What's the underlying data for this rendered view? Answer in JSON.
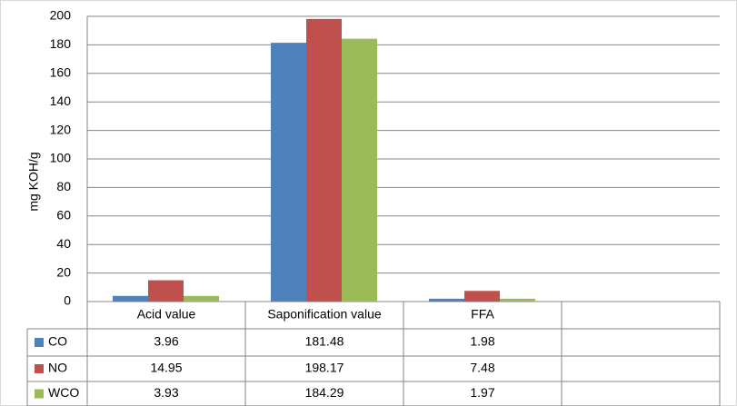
{
  "chart_data": {
    "type": "bar",
    "y_label": "mg KOH/g",
    "categories": [
      "Acid value",
      "Saponification value",
      "FFA",
      null
    ],
    "series": [
      {
        "name": "CO",
        "color": "#4f81bd",
        "values": [
          3.96,
          181.48,
          1.98,
          null
        ]
      },
      {
        "name": "NO",
        "color": "#c0504d",
        "values": [
          14.95,
          198.17,
          7.48,
          null
        ]
      },
      {
        "name": "WCO",
        "color": "#9bbb59",
        "values": [
          3.93,
          184.29,
          1.97,
          null
        ]
      }
    ],
    "ylim": [
      0,
      200
    ],
    "yticks": [
      0,
      20,
      40,
      60,
      80,
      100,
      120,
      140,
      160,
      180,
      200
    ],
    "grid": true
  }
}
